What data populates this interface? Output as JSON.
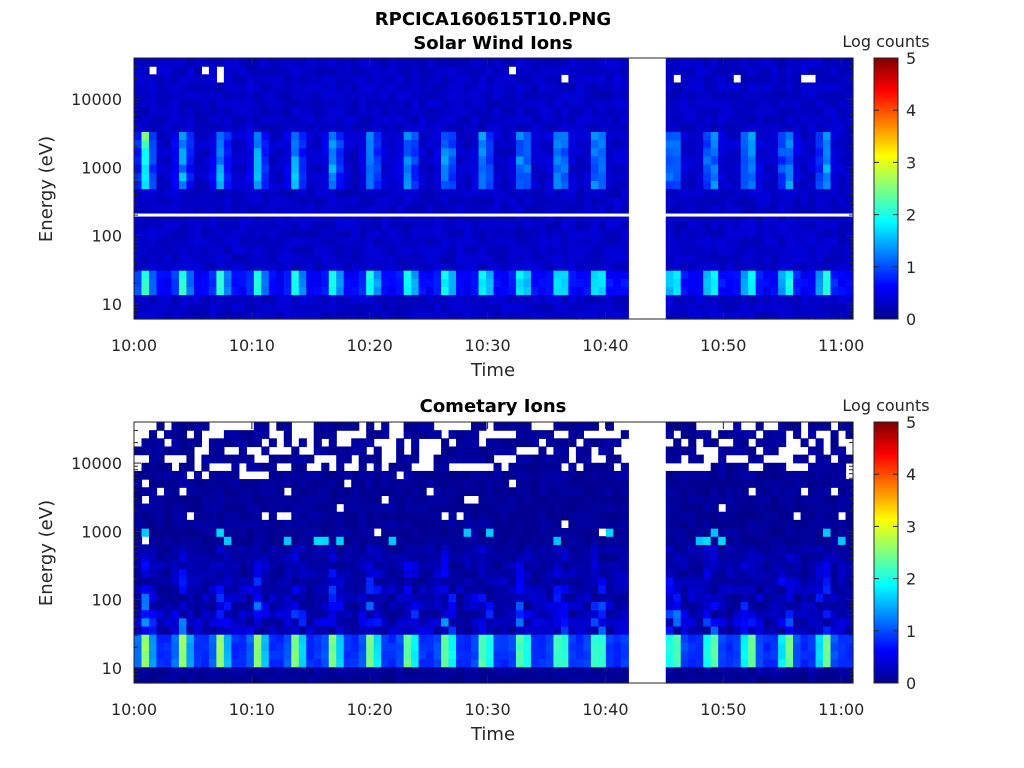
{
  "figure": {
    "title": "RPCICA160615T10.PNG"
  },
  "chart_data": [
    {
      "type": "heatmap",
      "title": "Solar Wind Ions",
      "xlabel": "Time",
      "ylabel": "Energy (eV)",
      "x_tick_labels": [
        "10:00",
        "10:10",
        "10:20",
        "10:30",
        "10:40",
        "10:50",
        "11:00"
      ],
      "x_tick_minutes": [
        0,
        10,
        20,
        30,
        40,
        50,
        60
      ],
      "xlim_minutes": [
        0,
        61
      ],
      "y_scale": "log",
      "y_tick_labels": [
        "10",
        "100",
        "1000",
        "10000"
      ],
      "y_tick_values": [
        10,
        100,
        1000,
        10000
      ],
      "ylim": [
        6,
        40000
      ],
      "data_gap_minutes": [
        42,
        45
      ],
      "blank_energy_row_eV": 200,
      "colorbar": {
        "label": "Log counts",
        "min": 0,
        "max": 5,
        "tick_labels": [
          "0",
          "1",
          "2",
          "3",
          "4",
          "5"
        ]
      },
      "energy_bands": [
        {
          "energy_eV_range": [
            12,
            30
          ],
          "peak_log_counts": 1.9,
          "pattern": "periodic pulses every ~3.2 min"
        },
        {
          "energy_eV_range": [
            500,
            3000
          ],
          "peak_log_counts": 2.8,
          "pattern": "periodic pulses every ~3.2 min, strongest near 10:01"
        },
        {
          "energy_eV_range": [
            6,
            40000
          ],
          "peak_log_counts": 0.5,
          "pattern": "background"
        }
      ]
    },
    {
      "type": "heatmap",
      "title": "Cometary Ions",
      "xlabel": "Time",
      "ylabel": "Energy (eV)",
      "x_tick_labels": [
        "10:00",
        "10:10",
        "10:20",
        "10:30",
        "10:40",
        "10:50",
        "11:00"
      ],
      "x_tick_minutes": [
        0,
        10,
        20,
        30,
        40,
        50,
        60
      ],
      "xlim_minutes": [
        0,
        61
      ],
      "y_scale": "log",
      "y_tick_labels": [
        "10",
        "100",
        "1000",
        "10000"
      ],
      "y_tick_values": [
        10,
        100,
        1000,
        10000
      ],
      "ylim": [
        6,
        40000
      ],
      "data_gap_minutes": [
        42,
        45
      ],
      "colorbar": {
        "label": "Log counts",
        "min": 0,
        "max": 5,
        "tick_labels": [
          "0",
          "1",
          "2",
          "3",
          "4",
          "5"
        ]
      },
      "energy_bands": [
        {
          "energy_eV_range": [
            10,
            35
          ],
          "peak_log_counts": 2.8,
          "pattern": "periodic pulses every ~3.2 min"
        },
        {
          "energy_eV_range": [
            35,
            600
          ],
          "peak_log_counts": 1.5,
          "pattern": "vertical streaks above pulses"
        },
        {
          "energy_eV_range": [
            600,
            1000
          ],
          "peak_log_counts": 2.0,
          "pattern": "isolated spots near 10:01 and 10:50-10:58"
        },
        {
          "energy_eV_range": [
            8000,
            40000
          ],
          "peak_log_counts": 0,
          "pattern": "sparse, many empty bins"
        }
      ]
    }
  ]
}
